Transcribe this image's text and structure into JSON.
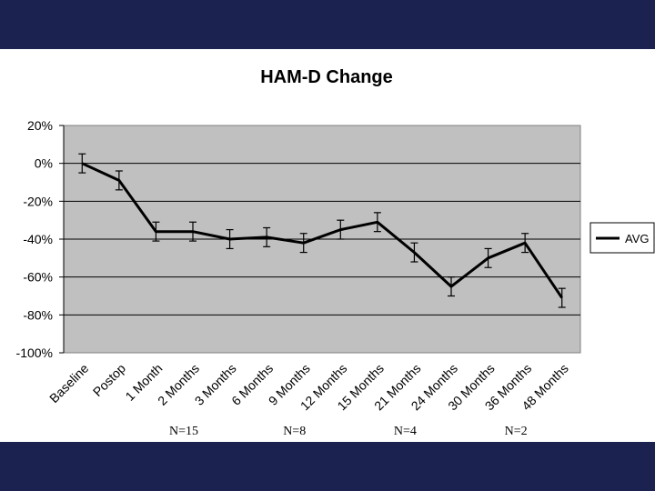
{
  "colors": {
    "band": "#1b2250",
    "plot_area": "#c0c0c0",
    "line": "#000000"
  },
  "chart_data": {
    "type": "line",
    "title": "HAM-D Change",
    "categories": [
      "Baseline",
      "Postop",
      "1 Month",
      "2 Months",
      "3 Months",
      "6 Months",
      "9 Months",
      "12 Months",
      "15 Months",
      "21 Months",
      "24 Months",
      "30 Months",
      "36 Months",
      "48 Months"
    ],
    "series": [
      {
        "name": "AVG",
        "values": [
          0,
          -9,
          -36,
          -36,
          -40,
          -39,
          -42,
          -35,
          -31,
          -47,
          -65,
          -50,
          -42,
          -71
        ],
        "error": [
          5,
          5,
          5,
          5,
          5,
          5,
          5,
          5,
          5,
          5,
          5,
          5,
          5,
          5
        ]
      }
    ],
    "ylim": [
      -100,
      20
    ],
    "yticks": [
      20,
      0,
      -20,
      -40,
      -60,
      -80,
      -100
    ],
    "ytick_labels": [
      "20%",
      "0%",
      "-20%",
      "-40%",
      "-60%",
      "-80%",
      "-100%"
    ],
    "grid": true,
    "legend": "right",
    "annotations": [
      {
        "text": "N=15",
        "category": "2 Months"
      },
      {
        "text": "N=8",
        "category": "9 Months"
      },
      {
        "text": "N=4",
        "category": "21 Months"
      },
      {
        "text": "N=2",
        "category": "36 Months"
      }
    ]
  }
}
